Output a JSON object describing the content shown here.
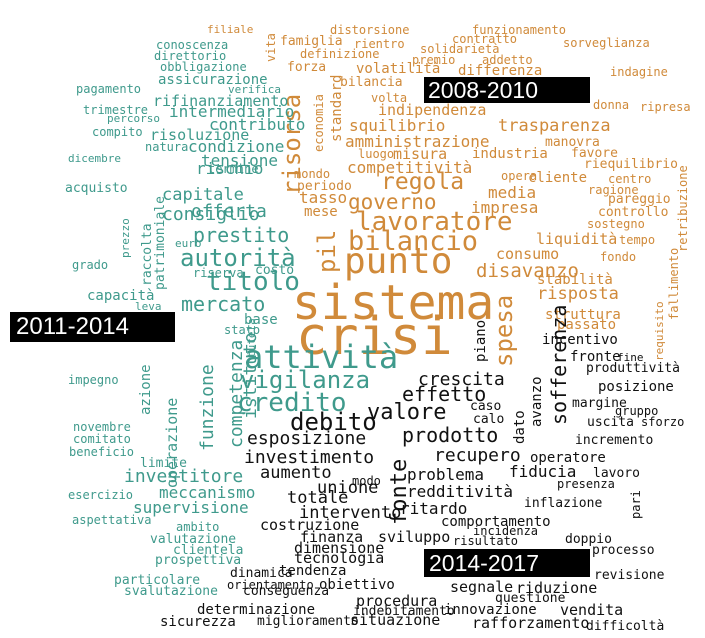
{
  "colors": {
    "2008-2010": "#d08a3a",
    "2011-2014": "#3f9a8c",
    "2014-2017": "#111111"
  },
  "labels": {
    "p2008": "2008-2010",
    "p2011": "2011-2014",
    "p2014": "2014-2017"
  },
  "words": {
    "w001": "filiale",
    "w002": "distorsione",
    "w003": "funzionamento",
    "w004": "famiglia",
    "w005": "rientro",
    "w006": "contratto",
    "w007": "solidarietà",
    "w008": "sorveglianza",
    "w009": "definizione",
    "w010": "premio",
    "w011": "addetto",
    "w012": "forza",
    "w013": "volatilità",
    "w014": "differenza",
    "w015": "indagine",
    "w016": "bilancia",
    "w017": "donna",
    "w018": "ripresa",
    "w019": "volta",
    "w020": "indipendenza",
    "w021": "trasparenza",
    "w022": "squilibrio",
    "w023": "standard",
    "w024": "economia",
    "w025": "vita",
    "w026": "amministrazione",
    "w027": "manovra",
    "w028": "luogo",
    "w029": "misura",
    "w030": "industria",
    "w031": "favore",
    "w032": "competitività",
    "w033": "riequilibrio",
    "w034": "mondo",
    "w035": "opera",
    "w036": "cliente",
    "w037": "centro",
    "w038": "regola",
    "w039": "ragione",
    "w040": "periodo",
    "w041": "media",
    "w042": "pareggio",
    "w043": "tasso",
    "w044": "governo",
    "w045": "impresa",
    "w046": "controllo",
    "w047": "retribuzione",
    "w048": "mese",
    "w049": "sostegno",
    "w050": "lavoratore",
    "w051": "liquidità",
    "w052": "tempo",
    "w053": "bilancio",
    "w054": "consumo",
    "w055": "fondo",
    "w056": "punto",
    "w057": "disavanzo",
    "w058": "stabilità",
    "w059": "fallimento",
    "w060": "risposta",
    "w061": "requisito",
    "w062": "struttura",
    "w063": "passato",
    "w064": "sistema",
    "w065": "crisi",
    "w066": "risorsa",
    "w067": "pil",
    "w068": "spesa",
    "t001": "conoscenza",
    "t002": "direttorio",
    "t003": "obbligazione",
    "t004": "assicurazione",
    "t005": "pagamento",
    "t006": "verifica",
    "t007": "rifinanziamento",
    "t008": "trimestre",
    "t009": "intermediario",
    "t010": "percorso",
    "t011": "contributo",
    "t012": "compito",
    "t013": "risoluzione",
    "t014": "natura",
    "t015": "condizione",
    "t016": "tensione",
    "t017": "dicembre",
    "t018": "termine",
    "t019": "rischio",
    "t020": "patrimoniale",
    "t021": "acquisto",
    "t022": "capitale",
    "t023": "offerta",
    "t024": "consiglio",
    "t025": "raccolta",
    "t026": "prestito",
    "t027": "euro",
    "t028": "autorità",
    "t029": "prezzo",
    "t030": "grado",
    "t031": "riserva",
    "t032": "costo",
    "t033": "titolo",
    "t034": "capacità",
    "t035": "mercato",
    "t036": "leva",
    "t037": "base",
    "t038": "stato",
    "t039": "attività",
    "t040": "impegno",
    "t041": "azione",
    "t042": "vigilanza",
    "t043": "tutela",
    "t044": "istituto",
    "t045": "credito",
    "t046": "competenza",
    "t047": "funzione",
    "t048": "operazione",
    "t049": "novembre",
    "t050": "comitato",
    "t051": "beneficio",
    "t052": "limite",
    "t053": "investitore",
    "t054": "esercizio",
    "t055": "meccanismo",
    "t056": "supervisione",
    "t057": "aspettativa",
    "t058": "ambito",
    "t059": "valutazione",
    "t060": "clientela",
    "t061": "prospettiva",
    "t062": "particolare",
    "t063": "svalutazione",
    "k001": "incentivo",
    "k002": "fronte",
    "k003": "fine",
    "k004": "produttività",
    "k005": "crescita",
    "k006": "posizione",
    "k007": "effetto",
    "k008": "margine",
    "k009": "valore",
    "k010": "gruppo",
    "k011": "debito",
    "k012": "caso",
    "k013": "calo",
    "k014": "uscita",
    "k015": "sforzo",
    "k016": "esposizione",
    "k017": "prodotto",
    "k018": "incremento",
    "k019": "investimento",
    "k020": "recupero",
    "k021": "operatore",
    "k022": "aumento",
    "k023": "problema",
    "k024": "fiducia",
    "k025": "lavoro",
    "k026": "presenza",
    "k027": "unione",
    "k028": "modo",
    "k029": "redditività",
    "k030": "totale",
    "k031": "inflazione",
    "k032": "pari",
    "k033": "intervento",
    "k034": "ritardo",
    "k035": "comportamento",
    "k036": "costruzione",
    "k037": "incidenza",
    "k038": "risultato",
    "k039": "doppio",
    "k040": "finanza",
    "k041": "sviluppo",
    "k042": "processo",
    "k043": "dimensione",
    "k044": "tecnologia",
    "k045": "tendenza",
    "k046": "dinamica",
    "k047": "revisione",
    "k048": "orientamento",
    "k049": "obiettivo",
    "k050": "segnale",
    "k051": "riduzione",
    "k052": "conseguenza",
    "k053": "questione",
    "k054": "procedura",
    "k055": "determinazione",
    "k056": "indebitamento",
    "k057": "innovazione",
    "k058": "vendita",
    "k059": "sicurezza",
    "k060": "miglioramento",
    "k061": "situazione",
    "k062": "rafforzamento",
    "k063": "difficoltà",
    "k064": "piano",
    "k065": "dato",
    "k066": "avanzo",
    "k067": "sofferenza",
    "k068": "fonte"
  }
}
